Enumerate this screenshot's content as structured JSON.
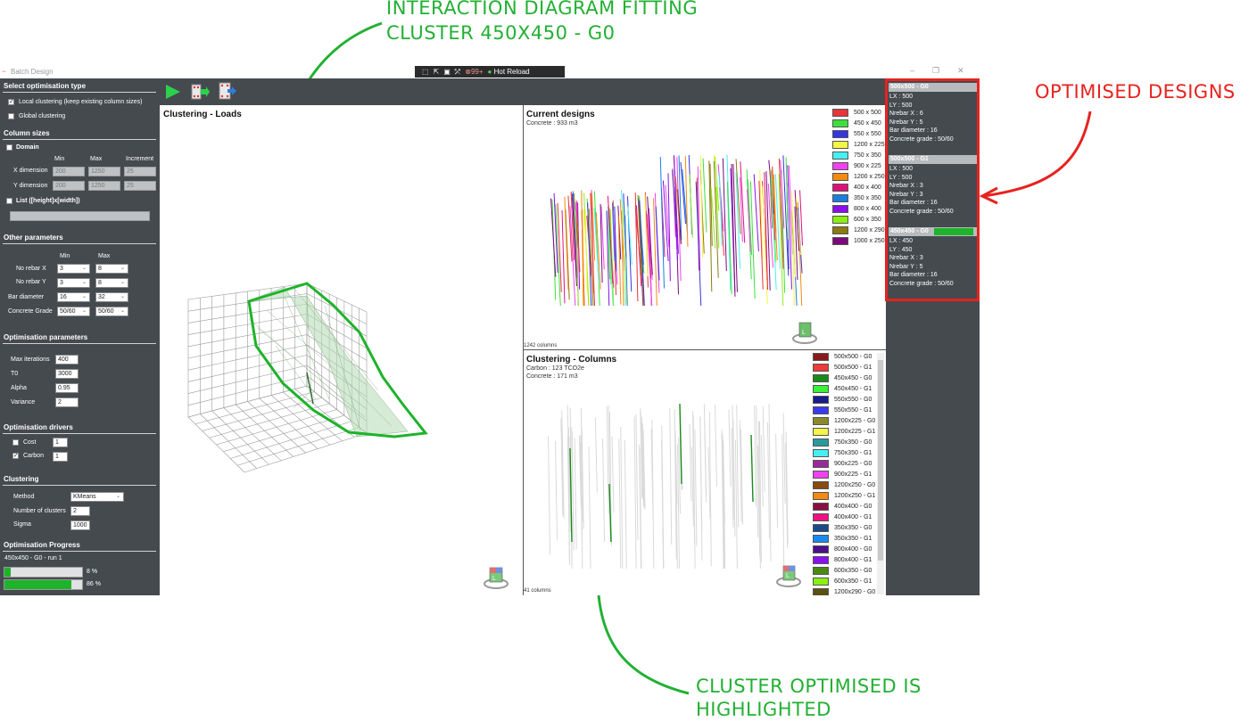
{
  "annotations": {
    "top_line1": "INTERACTION DIAGRAM FITTING",
    "top_line2": "CLUSTER 450X450 - G0",
    "right": "OPTIMISED DESIGNS",
    "bottom_line1": "CLUSTER OPTIMISED IS",
    "bottom_line2": "HIGHLIGHTED"
  },
  "window": {
    "title": "Batch Design",
    "devbar_count": "99+",
    "devbar_hot_reload": "Hot Reload",
    "minimize": "–",
    "restore": "❐",
    "close": "✕"
  },
  "left": {
    "select_type_title": "Select optimisation type",
    "local_clustering": "Local clustering (keep existing column sizes)",
    "local_checked": "✓",
    "global_clustering": "Global clustering",
    "column_sizes_title": "Column sizes",
    "domain_label": "Domain",
    "col_min": "Min",
    "col_max": "Max",
    "col_increment": "Increment",
    "x_dimension": "X dimension",
    "x_min": "200",
    "x_max": "1250",
    "x_inc": "25",
    "y_dimension": "Y dimension",
    "y_min": "200",
    "y_max": "1250",
    "y_inc": "25",
    "list_label": "List ([height]x[width])",
    "other_params_title": "Other parameters",
    "op_min": "Min",
    "op_max": "Max",
    "no_rebar_x": "No rebar X",
    "nrx_min": "3",
    "nrx_max": "8",
    "no_rebar_y": "No rebar Y",
    "nry_min": "3",
    "nry_max": "8",
    "bar_diameter": "Bar diameter",
    "bd_min": "16",
    "bd_max": "32",
    "concrete_grade": "Concrete Grade",
    "cg_min": "50/60",
    "cg_max": "50/60",
    "opt_params_title": "Optimisation parameters",
    "max_iterations": "Max iterations",
    "max_iterations_val": "400",
    "t0": "T0",
    "t0_val": "3000",
    "alpha": "Alpha",
    "alpha_val": "0.95",
    "variance": "Variance",
    "variance_val": "2",
    "drivers_title": "Optimisation drivers",
    "cost": "Cost",
    "cost_val": "1",
    "carbon": "Carbon",
    "carbon_val": "1",
    "carbon_checked": "✓",
    "clustering_title": "Clustering",
    "method": "Method",
    "method_val": "KMeans",
    "num_clusters": "Number of clusters",
    "num_clusters_val": "2",
    "sigma": "Sigma",
    "sigma_val": "1000",
    "progress_title": "Optimisation Progress",
    "progress_label": "450x450 - G0 - run 1",
    "progress1": "8 %",
    "progress1_value": 8,
    "progress2": "86 %",
    "progress2_value": 86
  },
  "panels": {
    "loads_title": "Clustering - Loads",
    "current_title": "Current designs",
    "current_concrete": "Concrete : 933 m3",
    "current_count": "1242 columns",
    "clustering_title": "Clustering - Columns",
    "clustering_carbon": "Carbon : 123 TCO2e",
    "clustering_concrete": "Concrete : 171 m3",
    "clustering_count": "41 columns",
    "cube_label": "L"
  },
  "current_legend": [
    {
      "label": "500 x 500",
      "color": "#e8343a"
    },
    {
      "label": "450 x 450",
      "color": "#3ce03c"
    },
    {
      "label": "550 x 550",
      "color": "#3636e0"
    },
    {
      "label": "1200 x 225",
      "color": "#f5f545"
    },
    {
      "label": "750 x 350",
      "color": "#45f0f0"
    },
    {
      "label": "900 x 225",
      "color": "#f040f0"
    },
    {
      "label": "1200 x 250",
      "color": "#f58a10"
    },
    {
      "label": "400 x 400",
      "color": "#e0107a"
    },
    {
      "label": "350 x 350",
      "color": "#1a7ee0"
    },
    {
      "label": "800 x 400",
      "color": "#8a10e8"
    },
    {
      "label": "600 x 350",
      "color": "#8af010"
    },
    {
      "label": "1200 x 290",
      "color": "#8a7a10"
    },
    {
      "label": "1000 x 250",
      "color": "#7a0a7a"
    }
  ],
  "cluster_legend": [
    {
      "label": "500x500 - G0",
      "color": "#8a1a1a"
    },
    {
      "label": "500x500 - G1",
      "color": "#f03a3a"
    },
    {
      "label": "450x450 - G0",
      "color": "#1a8a1a"
    },
    {
      "label": "450x450 - G1",
      "color": "#3af03a"
    },
    {
      "label": "550x550 - G0",
      "color": "#1a1a8a"
    },
    {
      "label": "550x550 - G1",
      "color": "#3a3af0"
    },
    {
      "label": "1200x225 - G0",
      "color": "#8a8a2a"
    },
    {
      "label": "1200x225 - G1",
      "color": "#f5f545"
    },
    {
      "label": "750x350 - G0",
      "color": "#2a9a9a"
    },
    {
      "label": "750x350 - G1",
      "color": "#45f0f0"
    },
    {
      "label": "900x225 - G0",
      "color": "#9a2a9a"
    },
    {
      "label": "900x225 - G1",
      "color": "#f040f0"
    },
    {
      "label": "1200x250 - G0",
      "color": "#8a4a10"
    },
    {
      "label": "1200x250 - G1",
      "color": "#f58a10"
    },
    {
      "label": "400x400 - G0",
      "color": "#8a1040"
    },
    {
      "label": "400x400 - G1",
      "color": "#f01080"
    },
    {
      "label": "350x350 - G0",
      "color": "#1a4a8a"
    },
    {
      "label": "350x350 - G1",
      "color": "#1a8af0"
    },
    {
      "label": "800x400 - G0",
      "color": "#4a108a"
    },
    {
      "label": "800x400 - G1",
      "color": "#8a10f0"
    },
    {
      "label": "600x350 - G0",
      "color": "#4a8a10"
    },
    {
      "label": "600x350 - G1",
      "color": "#8af010"
    },
    {
      "label": "1200x290 - G0",
      "color": "#5a5010"
    }
  ],
  "designs": [
    {
      "header": "500x500 - G0",
      "lx": "LX : 500",
      "ly": "LY : 500",
      "nx": "Nrebar X : 6",
      "ny": "Nrebar Y : 5",
      "bar": "Bar diameter : 16",
      "grade": "Concrete grade : 50/60"
    },
    {
      "header": "500x500 - G1",
      "lx": "LX : 500",
      "ly": "LY : 500",
      "nx": "Nrebar X : 3",
      "ny": "Nrebar Y : 3",
      "bar": "Bar diameter : 16",
      "grade": "Concrete grade : 50/60"
    },
    {
      "header": "450x450 - G0",
      "lx": "LX : 450",
      "ly": "LY : 450",
      "nx": "Nrebar X : 3",
      "ny": "Nrebar Y : 5",
      "bar": "Bar diameter : 16",
      "grade": "Concrete grade : 50/60"
    }
  ],
  "colors": {
    "panel_dark": "#454a4f",
    "accent_green": "#22b033",
    "highlight_red": "#e6231f",
    "progress_green": "#1db32a"
  }
}
